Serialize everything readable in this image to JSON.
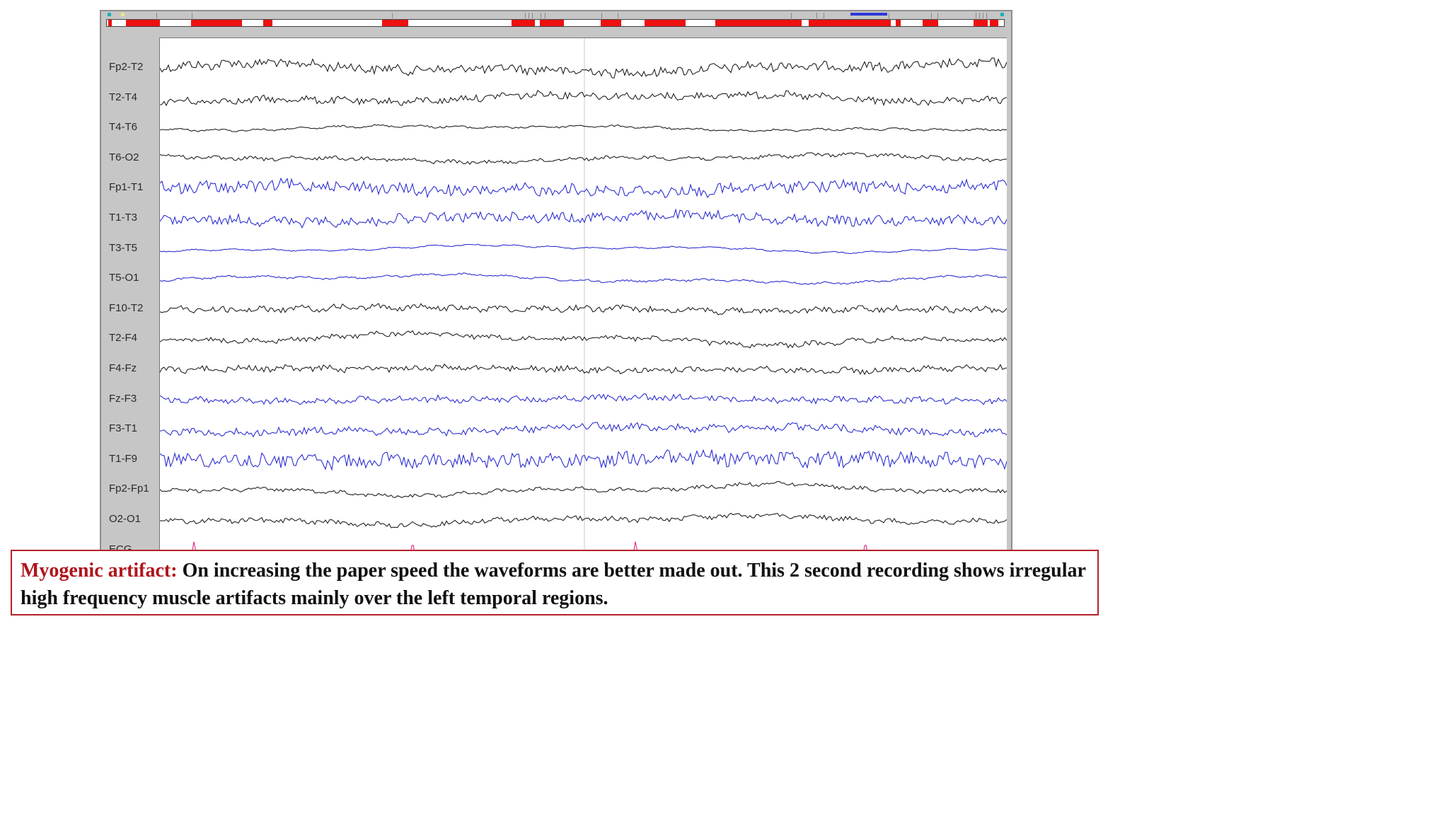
{
  "caption": {
    "title": "Myogenic artifact:",
    "text": " On increasing the paper speed the waveforms are better made out. This 2 second recording shows irregular high frequency muscle artifacts mainly over the left temporal regions."
  },
  "colors": {
    "right_hemisphere_trace": "#222222",
    "left_hemisphere_trace": "#2d2fd0",
    "ecg_trace": "#e0288a",
    "artifact_marker": "#ee1111",
    "caption_accent": "#b0141c"
  },
  "channels": [
    {
      "label": "Fp2-T2",
      "color": "black",
      "noise": 0.8,
      "slow": 0.5
    },
    {
      "label": "T2-T4",
      "color": "black",
      "noise": 0.6,
      "slow": 0.5
    },
    {
      "label": "T4-T6",
      "color": "black",
      "noise": 0.15,
      "slow": 0.3
    },
    {
      "label": "T6-O2",
      "color": "black",
      "noise": 0.3,
      "slow": 0.4
    },
    {
      "label": "Fp1-T1",
      "color": "blue",
      "noise": 1.0,
      "slow": 0.4
    },
    {
      "label": "T1-T3",
      "color": "blue",
      "noise": 0.8,
      "slow": 0.4
    },
    {
      "label": "T3-T5",
      "color": "blue",
      "noise": 0.08,
      "slow": 0.4
    },
    {
      "label": "T5-O1",
      "color": "blue",
      "noise": 0.15,
      "slow": 0.5
    },
    {
      "label": "F10-T2",
      "color": "black",
      "noise": 0.5,
      "slow": 0.2
    },
    {
      "label": "T2-F4",
      "color": "black",
      "noise": 0.4,
      "slow": 0.6
    },
    {
      "label": "F4-Fz",
      "color": "black",
      "noise": 0.5,
      "slow": 0.2
    },
    {
      "label": "Fz-F3",
      "color": "blue",
      "noise": 0.5,
      "slow": 0.2
    },
    {
      "label": "F3-T1",
      "color": "blue",
      "noise": 0.6,
      "slow": 0.4
    },
    {
      "label": "T1-F9",
      "color": "blue",
      "noise": 1.2,
      "slow": 0.2
    },
    {
      "label": "Fp2-Fp1",
      "color": "black",
      "noise": 0.3,
      "slow": 0.6
    },
    {
      "label": "O2-O1",
      "color": "black",
      "noise": 0.4,
      "slow": 0.5
    },
    {
      "label": "ECG",
      "color": "pink",
      "noise": 0.0,
      "slow": 0.0
    }
  ]
}
